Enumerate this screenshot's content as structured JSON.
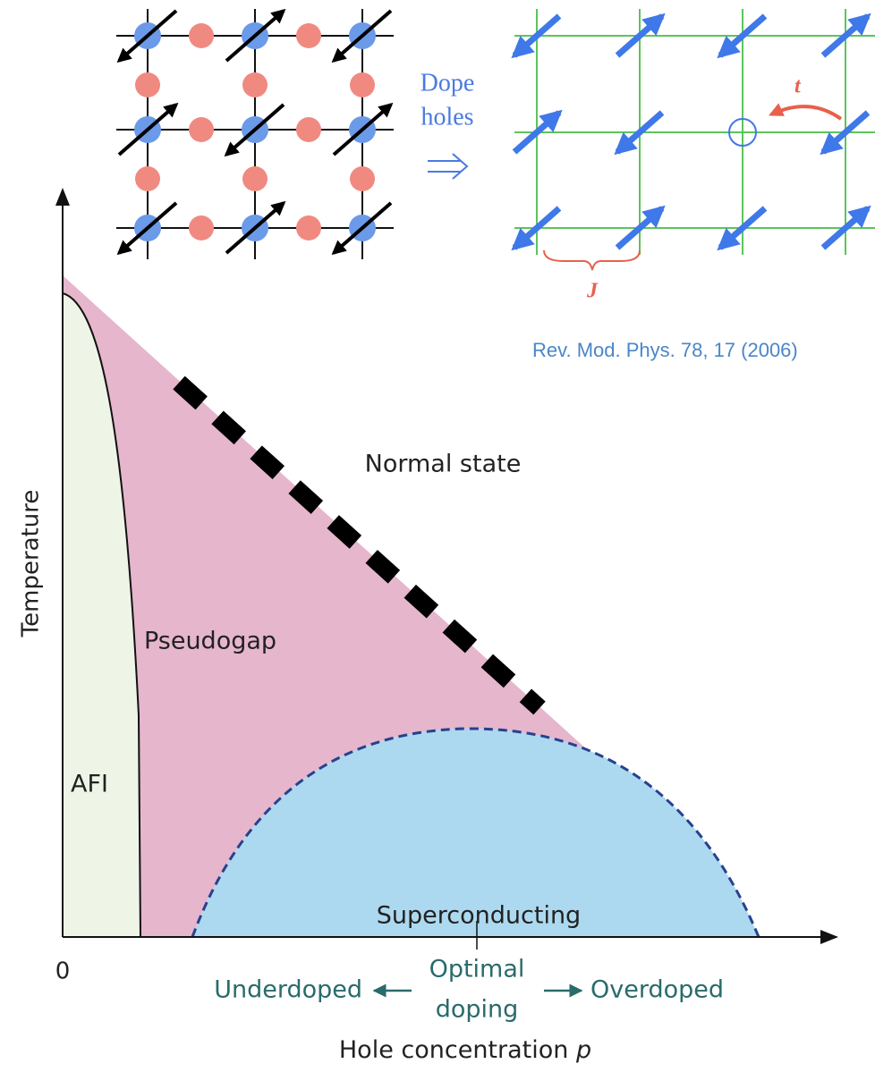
{
  "lattice": {
    "dope_label": [
      "Dope",
      "holes"
    ],
    "hopping": "t",
    "exchange": "J"
  },
  "citation": "Rev. Mod. Phys. 78, 17 (2006)",
  "phase_diagram": {
    "y_axis_label": "Temperature",
    "origin_label": "0",
    "regions": {
      "normal": "Normal state",
      "pseudogap": "Pseudogap",
      "afi": "AFI",
      "superconducting": "Superconducting"
    },
    "doping": {
      "under": "Underdoped",
      "optimal": [
        "Optimal",
        "doping"
      ],
      "over": "Overdoped"
    },
    "x_axis_label": {
      "text": "Hole concentration",
      "symbol": "p"
    }
  }
}
